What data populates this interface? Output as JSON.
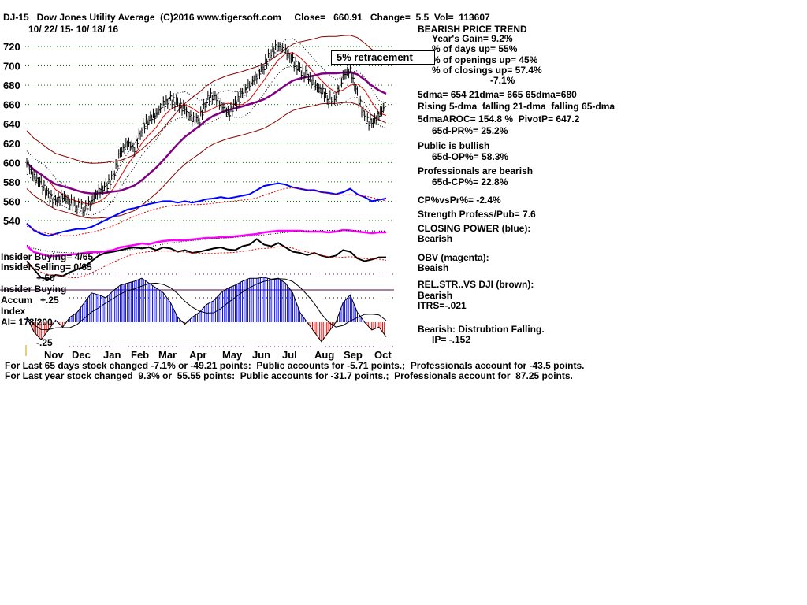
{
  "header": {
    "title": "DJ-15   Dow Jones Utility Average  (C)2016 www.tigersoft.com     Close=   660.91   Change=  5.5  Vol=  113607",
    "dates": "10/ 22/ 15- 10/ 18/ 16"
  },
  "panel": [
    {
      "text": "BEARISH PRICE TREND",
      "indent": 0
    },
    {
      "text": "Year's Gain= 9.2%",
      "indent": 1
    },
    {
      "text": "% of days up= 55%",
      "indent": 1
    },
    {
      "text": "% of openings up= 45%",
      "indent": 1
    },
    {
      "text": "% of closings up= 57.4%",
      "indent": 1
    },
    {
      "text": "-7.1%",
      "indent": 2
    },
    {
      "text": "5dma= 654 21dma= 665 65dma=680",
      "indent": 0
    },
    {
      "text": "Rising 5-dma  falling 21-dma  falling 65-dma",
      "indent": 0
    },
    {
      "text": "5dmaAROC= 154.8 %  PivotP= 647.2",
      "indent": 0
    },
    {
      "text": "65d-PR%= 25.2%",
      "indent": 1
    },
    {
      "text": "Public is bullish",
      "indent": 0
    },
    {
      "text": "65d-OP%= 58.3%",
      "indent": 1
    },
    {
      "text": "Professionals are bearish",
      "indent": 0
    },
    {
      "text": "65d-CP%= 22.8%",
      "indent": 1
    },
    {
      "text": "CP%vsPr%= -2.4%",
      "indent": 0
    },
    {
      "text": "Strength Profess/Pub= 7.6",
      "indent": 0
    },
    {
      "text": "CLOSING POWER (blue):",
      "indent": 0
    },
    {
      "text": "Bearish",
      "indent": 0
    },
    {
      "text": "OBV (magenta):",
      "indent": 0
    },
    {
      "text": "Beaish",
      "indent": 0
    },
    {
      "text": "REL.STR..VS DJI (brown):",
      "indent": 0
    },
    {
      "text": "Bearish",
      "indent": 0
    },
    {
      "text": "ITRS=-.021",
      "indent": 0
    },
    {
      "text": "Bearish: Distrubtion Falling.",
      "indent": 0
    },
    {
      "text": "IP= -.152",
      "indent": 1
    }
  ],
  "retracement_label": "5% retracement",
  "left_labels": {
    "insider_buying": "Insider Buying= 4/65",
    "insider_selling": "Insider Selling= 0/65",
    "plus50": "+.50",
    "insider_buying2": "Insider Buying",
    "accum": "Accum   +.25",
    "index": "Index",
    "ai": "AI= 178/200",
    "minus25": "-.25"
  },
  "footer": [
    "For Last 65 days stock changed -7.1% or -49.21 points:  Public accounts for -5.71 points.;  Professionals account for -43.5 points.",
    "For Last year stock changed  9.3% or  55.55 points:  Public accounts for -31.7 points.;  Professionals account for  87.25 points."
  ],
  "chart_data": {
    "type": "line",
    "title": "Dow Jones Utility Average",
    "xlabel": "",
    "ylabel": "",
    "ylim": [
      540,
      720
    ],
    "yticks": [
      "720",
      "700",
      "680",
      "660",
      "640",
      "620",
      "600",
      "580",
      "560",
      "540"
    ],
    "xticks": [
      "Nov",
      "Dec",
      "Jan",
      "Feb",
      "Mar",
      "Apr",
      "May",
      "Jun",
      "Jul",
      "Aug",
      "Sep",
      "Oct"
    ],
    "grid": true,
    "price_weekly_close": [
      600,
      585,
      578,
      565,
      560,
      565,
      560,
      555,
      552,
      560,
      570,
      575,
      585,
      610,
      620,
      615,
      635,
      645,
      650,
      660,
      665,
      660,
      655,
      645,
      645,
      665,
      670,
      660,
      650,
      660,
      670,
      680,
      690,
      700,
      715,
      720,
      715,
      705,
      695,
      690,
      680,
      675,
      665,
      670,
      690,
      695,
      670,
      645,
      640,
      650,
      660
    ],
    "closing_power": [
      0.3,
      0.2,
      0.15,
      0.12,
      0.15,
      0.18,
      0.2,
      0.22,
      0.22,
      0.25,
      0.3,
      0.35,
      0.4,
      0.45,
      0.5,
      0.52,
      0.55,
      0.58,
      0.6,
      0.62,
      0.62,
      0.6,
      0.62,
      0.6,
      0.62,
      0.65,
      0.66,
      0.68,
      0.66,
      0.68,
      0.7,
      0.72,
      0.78,
      0.84,
      0.86,
      0.88,
      0.86,
      0.82,
      0.8,
      0.78,
      0.78,
      0.75,
      0.74,
      0.72,
      0.75,
      0.8,
      0.72,
      0.68,
      0.62,
      0.64,
      0.66
    ],
    "obv": [
      0.45,
      0.3,
      0.25,
      0.2,
      0.2,
      0.22,
      0.24,
      0.25,
      0.28,
      0.3,
      0.3,
      0.32,
      0.35,
      0.42,
      0.45,
      0.48,
      0.52,
      0.5,
      0.55,
      0.58,
      0.6,
      0.6,
      0.6,
      0.62,
      0.64,
      0.66,
      0.66,
      0.68,
      0.68,
      0.7,
      0.72,
      0.74,
      0.76,
      0.8,
      0.82,
      0.84,
      0.84,
      0.84,
      0.84,
      0.82,
      0.82,
      0.82,
      0.8,
      0.82,
      0.86,
      0.85,
      0.82,
      0.8,
      0.78,
      0.8,
      0.8
    ],
    "rel_strength": [
      0.55,
      0.4,
      0.25,
      0.22,
      0.3,
      0.28,
      0.35,
      0.4,
      0.45,
      0.55,
      0.65,
      0.7,
      0.72,
      0.75,
      0.78,
      0.8,
      0.78,
      0.8,
      0.75,
      0.8,
      0.78,
      0.72,
      0.75,
      0.7,
      0.72,
      0.75,
      0.78,
      0.8,
      0.76,
      0.75,
      0.82,
      0.85,
      0.95,
      0.85,
      0.82,
      0.88,
      0.8,
      0.72,
      0.7,
      0.66,
      0.7,
      0.65,
      0.62,
      0.65,
      0.75,
      0.72,
      0.6,
      0.55,
      0.58,
      0.62,
      0.62
    ],
    "accum_index": [
      0.05,
      -0.1,
      -0.18,
      -0.08,
      0.02,
      -0.05,
      0.05,
      0.1,
      0.2,
      0.3,
      0.28,
      0.25,
      0.32,
      0.38,
      0.4,
      0.42,
      0.45,
      0.4,
      0.35,
      0.3,
      0.2,
      0.05,
      -0.02,
      0.05,
      0.1,
      0.18,
      0.22,
      0.3,
      0.35,
      0.38,
      0.42,
      0.45,
      0.45,
      0.46,
      0.44,
      0.45,
      0.4,
      0.3,
      0.1,
      0.0,
      -0.1,
      -0.2,
      -0.1,
      0.0,
      0.2,
      0.28,
      0.1,
      0.0,
      -0.08,
      -0.05,
      -0.15
    ]
  }
}
